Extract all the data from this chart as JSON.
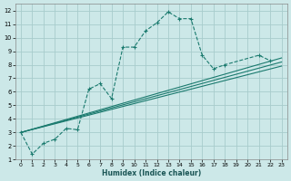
{
  "xlabel": "Humidex (Indice chaleur)",
  "bg_color": "#cce8e8",
  "grid_color": "#a8cccc",
  "line_color": "#1a7a6e",
  "xlim": [
    -0.5,
    23.5
  ],
  "ylim": [
    1,
    12.5
  ],
  "xticks": [
    0,
    1,
    2,
    3,
    4,
    5,
    6,
    7,
    8,
    9,
    10,
    11,
    12,
    13,
    14,
    15,
    16,
    17,
    18,
    19,
    20,
    21,
    22,
    23
  ],
  "yticks": [
    1,
    2,
    3,
    4,
    5,
    6,
    7,
    8,
    9,
    10,
    11,
    12
  ],
  "main_line": {
    "x": [
      0,
      1,
      2,
      3,
      4,
      5,
      6,
      7,
      8,
      9,
      10,
      11,
      12,
      13,
      14,
      15,
      16,
      17,
      18,
      21,
      22
    ],
    "y": [
      3,
      1.4,
      2.2,
      2.5,
      3.3,
      3.2,
      6.2,
      6.6,
      5.5,
      9.3,
      9.3,
      10.5,
      11.1,
      11.9,
      11.4,
      11.4,
      8.7,
      7.7,
      8.0,
      8.7,
      8.3
    ]
  },
  "parallel_lines": [
    {
      "x": [
        0,
        23
      ],
      "y": [
        3.0,
        7.9
      ]
    },
    {
      "x": [
        0,
        23
      ],
      "y": [
        3.0,
        8.2
      ]
    },
    {
      "x": [
        0,
        23
      ],
      "y": [
        3.0,
        8.5
      ]
    }
  ]
}
